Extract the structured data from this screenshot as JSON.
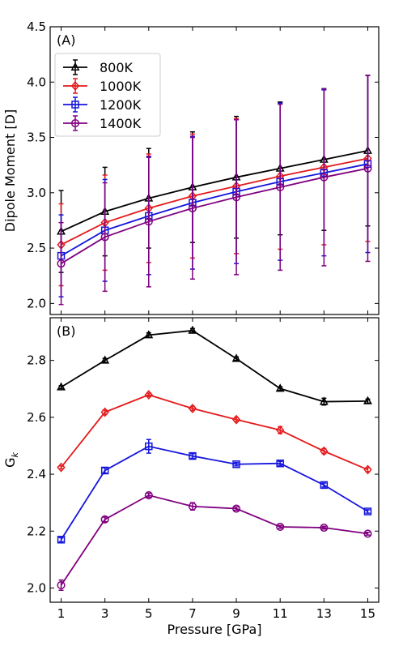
{
  "chart_data": [
    {
      "type": "line",
      "panel_label": "(A)",
      "xlabel": "",
      "ylabel": "Dipole Moment [D]",
      "xlim": [
        0.5,
        15.5
      ],
      "ylim": [
        1.9,
        4.5
      ],
      "x_ticks": [
        1,
        3,
        5,
        7,
        9,
        11,
        13,
        15
      ],
      "y_ticks": [
        2.0,
        2.5,
        3.0,
        3.5,
        4.0,
        4.5
      ],
      "y_tick_labels": [
        "2.0",
        "2.5",
        "3.0",
        "3.5",
        "4.0",
        "4.5"
      ],
      "grid": false,
      "legend": "upper-left",
      "x": [
        1,
        3,
        5,
        7,
        9,
        11,
        13,
        15
      ],
      "series": [
        {
          "name": "800K",
          "color": "#000000",
          "marker": "triangle",
          "values": [
            2.65,
            2.83,
            2.95,
            3.05,
            3.14,
            3.22,
            3.3,
            3.38
          ],
          "errors": [
            0.37,
            0.4,
            0.45,
            0.5,
            0.55,
            0.6,
            0.64,
            0.68
          ]
        },
        {
          "name": "1000K",
          "color": "#e41a1c",
          "marker": "diamond",
          "values": [
            2.53,
            2.73,
            2.86,
            2.97,
            3.06,
            3.15,
            3.23,
            3.31
          ],
          "errors": [
            0.37,
            0.43,
            0.49,
            0.56,
            0.61,
            0.66,
            0.7,
            0.75
          ]
        },
        {
          "name": "1200K",
          "color": "#1515dd",
          "marker": "square",
          "values": [
            2.43,
            2.66,
            2.79,
            2.91,
            3.01,
            3.1,
            3.18,
            3.26
          ],
          "errors": [
            0.37,
            0.46,
            0.53,
            0.6,
            0.65,
            0.71,
            0.75,
            0.8
          ]
        },
        {
          "name": "1400K",
          "color": "#800080",
          "marker": "circle",
          "values": [
            2.36,
            2.6,
            2.74,
            2.86,
            2.96,
            3.05,
            3.14,
            3.22
          ],
          "errors": [
            0.37,
            0.49,
            0.59,
            0.64,
            0.7,
            0.75,
            0.8,
            0.84
          ]
        }
      ]
    },
    {
      "type": "line",
      "panel_label": "(B)",
      "xlabel": "Pressure [GPa]",
      "ylabel": "G",
      "ylabel_sub": "k",
      "xlim": [
        0.5,
        15.5
      ],
      "ylim": [
        1.95,
        2.95
      ],
      "x_ticks": [
        1,
        3,
        5,
        7,
        9,
        11,
        13,
        15
      ],
      "y_ticks": [
        2.0,
        2.2,
        2.4,
        2.6,
        2.8
      ],
      "y_tick_labels": [
        "2.0",
        "2.2",
        "2.4",
        "2.6",
        "2.8"
      ],
      "grid": false,
      "x": [
        1,
        3,
        5,
        7,
        9,
        11,
        13,
        15
      ],
      "series": [
        {
          "name": "800K",
          "color": "#000000",
          "marker": "triangle",
          "values": [
            2.706,
            2.8,
            2.889,
            2.905,
            2.806,
            2.701,
            2.655,
            2.657
          ],
          "errors": [
            0.005,
            0.007,
            0.008,
            0.007,
            0.006,
            0.006,
            0.012,
            0.007
          ]
        },
        {
          "name": "1000K",
          "color": "#e41a1c",
          "marker": "diamond",
          "values": [
            2.424,
            2.618,
            2.679,
            2.631,
            2.592,
            2.555,
            2.481,
            2.416
          ],
          "errors": [
            0.005,
            0.007,
            0.006,
            0.007,
            0.007,
            0.012,
            0.009,
            0.007
          ]
        },
        {
          "name": "1200K",
          "color": "#1515dd",
          "marker": "square",
          "values": [
            2.17,
            2.413,
            2.498,
            2.464,
            2.435,
            2.438,
            2.362,
            2.269
          ],
          "errors": [
            0.007,
            0.009,
            0.024,
            0.008,
            0.006,
            0.007,
            0.007,
            0.006
          ]
        },
        {
          "name": "1400K",
          "color": "#800080",
          "marker": "circle",
          "values": [
            2.01,
            2.241,
            2.326,
            2.287,
            2.279,
            2.215,
            2.212,
            2.191
          ],
          "errors": [
            0.018,
            0.008,
            0.007,
            0.013,
            0.006,
            0.005,
            0.005,
            0.005
          ]
        }
      ]
    }
  ]
}
